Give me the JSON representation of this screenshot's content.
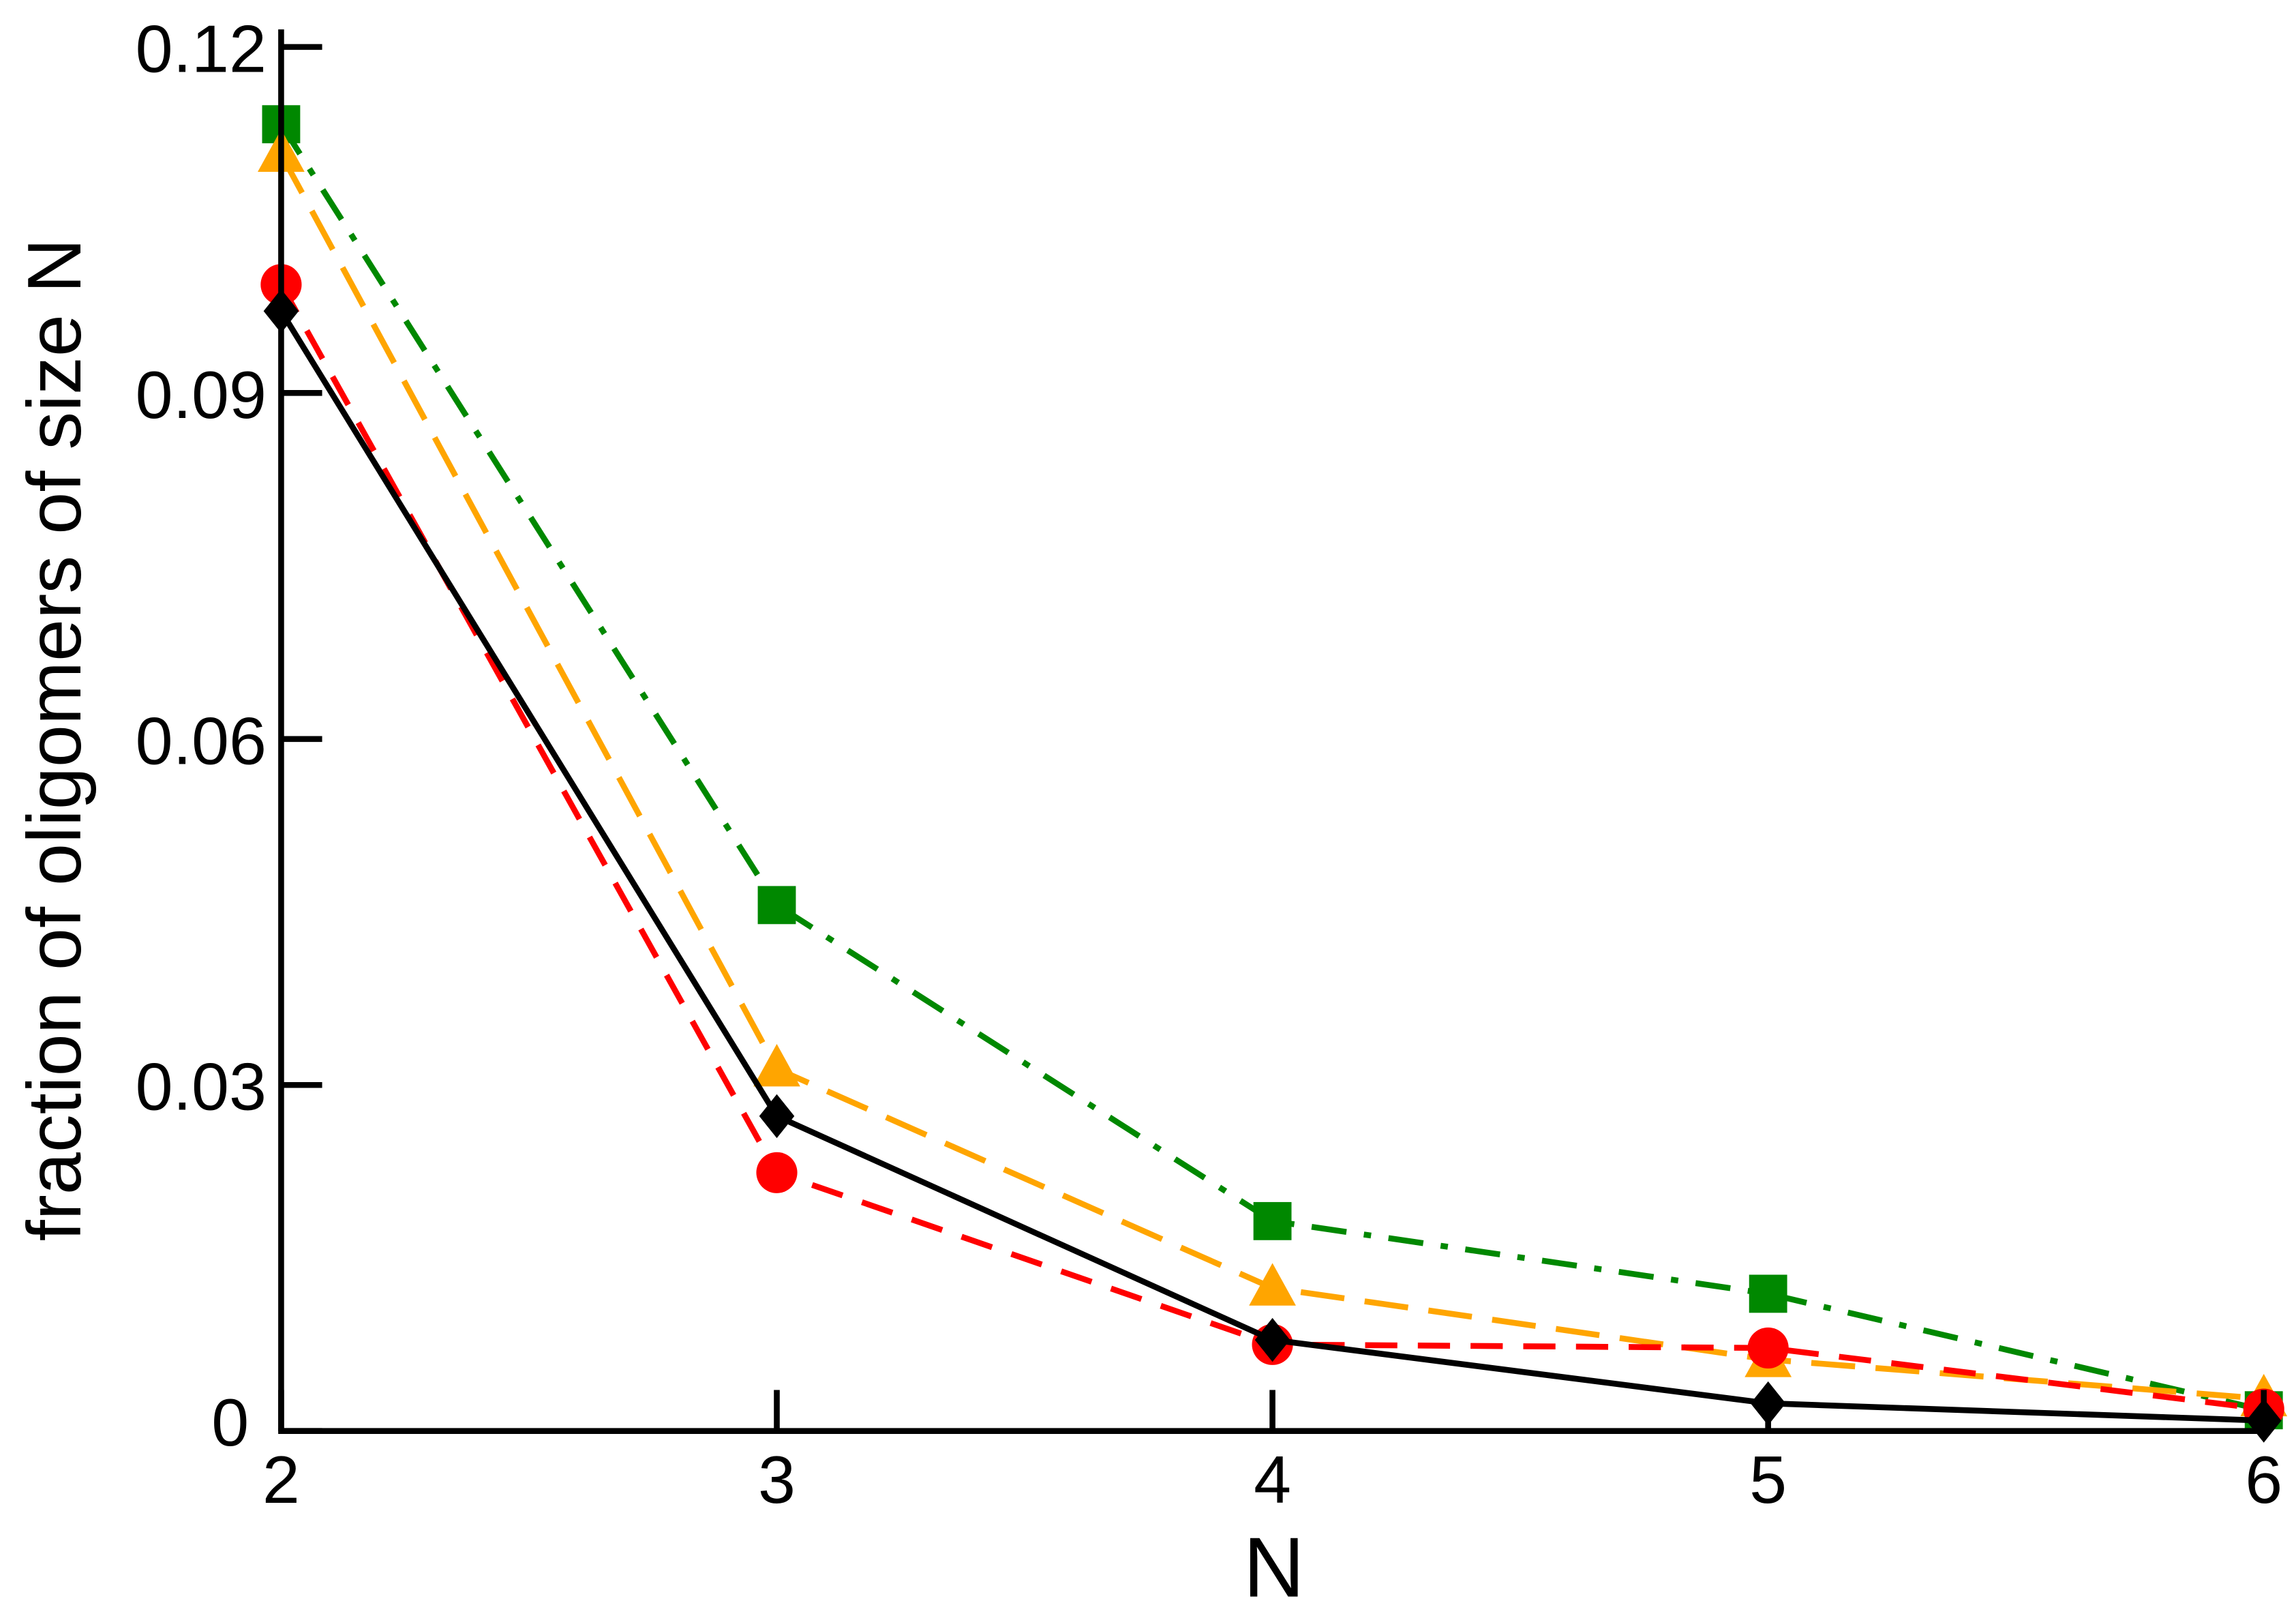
{
  "chart_data": {
    "type": "line",
    "title": "",
    "xlabel": "N",
    "ylabel": "fraction of oligomers of size N",
    "x": [
      2,
      3,
      4,
      5,
      6
    ],
    "xlim": [
      2,
      6
    ],
    "ylim": [
      0,
      0.12
    ],
    "xticks": [
      "2",
      "3",
      "4",
      "5",
      "6"
    ],
    "yticks": [
      "0",
      "0.03",
      "0.06",
      "0.09",
      "0.12"
    ],
    "ytick_values": [
      0,
      0.03,
      0.06,
      0.09,
      0.12
    ],
    "grid": false,
    "legend": "none",
    "series": [
      {
        "color": "#008800",
        "marker": "square",
        "dash": "dash-dot",
        "values": [
          0.1133,
          0.0456,
          0.0182,
          0.0119,
          0.0018
        ]
      },
      {
        "color": "#FFA500",
        "marker": "triangle",
        "dash": "long-dash",
        "values": [
          0.1107,
          0.0314,
          0.0124,
          0.0062,
          0.0028
        ]
      },
      {
        "color": "#FF0000",
        "marker": "circle",
        "dash": "dash",
        "values": [
          0.0994,
          0.0224,
          0.0075,
          0.0072,
          0.0019
        ]
      },
      {
        "color": "#000000",
        "marker": "diamond",
        "dash": "solid",
        "values": [
          0.0971,
          0.0273,
          0.0079,
          0.0024,
          0.0009
        ]
      }
    ]
  }
}
